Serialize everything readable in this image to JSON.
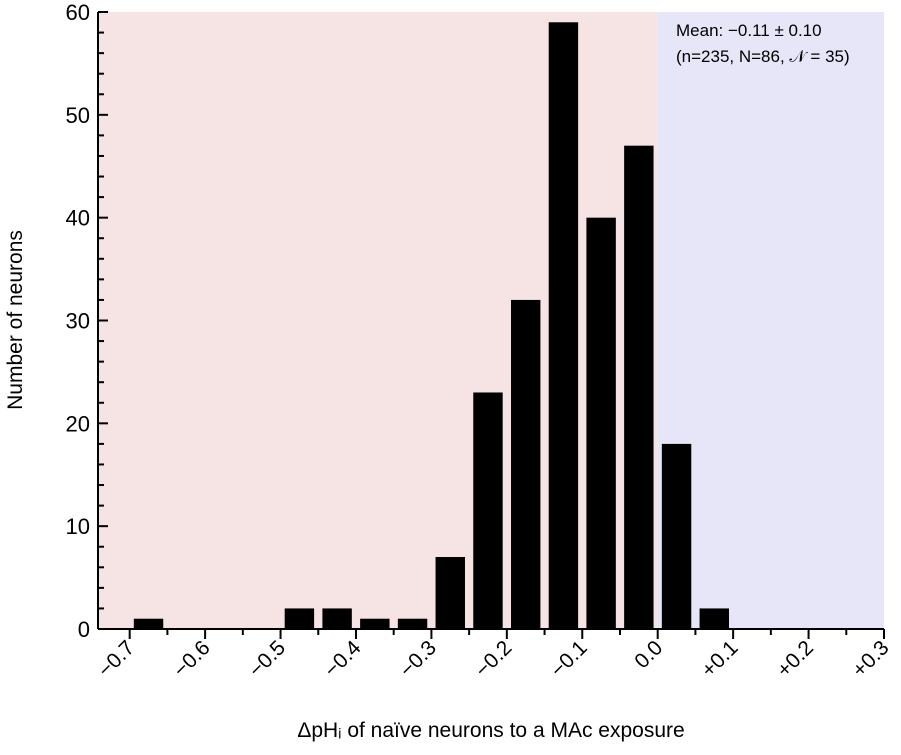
{
  "chart_data": {
    "type": "bar",
    "title": "",
    "xlabel": "ΔpHᵢ of naïve neurons to a MAc exposure",
    "ylabel": "Number of neurons",
    "xlim": [
      -0.742,
      0.3
    ],
    "ylim": [
      0,
      60
    ],
    "grid": false,
    "x_ticks": [
      -0.7,
      -0.6,
      -0.5,
      -0.4,
      -0.3,
      -0.2,
      -0.1,
      0.0,
      0.1,
      0.2,
      0.3
    ],
    "x_tick_labels": [
      "−0.7",
      "−0.6",
      "−0.5",
      "−0.4",
      "−0.3",
      "−0.2",
      "−0.1",
      "0.0",
      "+0.1",
      "+0.2",
      "+0.3"
    ],
    "y_ticks": [
      0,
      10,
      20,
      30,
      40,
      50,
      60
    ],
    "y_tick_labels": [
      "0",
      "10",
      "20",
      "30",
      "40",
      "50",
      "60"
    ],
    "bin_width": 0.05,
    "bin_centers": [
      -0.675,
      -0.475,
      -0.425,
      -0.375,
      -0.325,
      -0.275,
      -0.225,
      -0.175,
      -0.125,
      -0.075,
      -0.025,
      0.025,
      0.075
    ],
    "values": [
      1,
      2,
      2,
      1,
      1,
      7,
      23,
      32,
      59,
      40,
      47,
      18,
      2
    ],
    "bar_color": "#000000",
    "regions": [
      {
        "from": -0.742,
        "to": 0.0,
        "color": "#f6e4e4"
      },
      {
        "from": 0.0,
        "to": 0.3,
        "color": "#e6e6f8"
      }
    ],
    "annotation": {
      "line1": "Mean: −0.11 ± 0.10",
      "line2": "(n=235, N=86, 𝒩 = 35)"
    }
  }
}
